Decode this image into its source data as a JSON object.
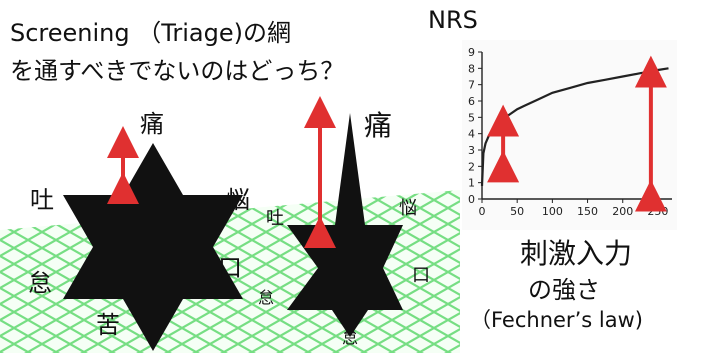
{
  "question": {
    "line1": "Screening （Triage)の網",
    "line2": "を通すべきでないのはどっち？"
  },
  "left_star": {
    "top": "痛",
    "upper_left": "吐",
    "upper_right": "悩",
    "lower_left": "怠",
    "lower_right": "口",
    "bottom": "苦"
  },
  "right_star": {
    "top": "痛",
    "upper_left": "吐",
    "upper_right": "悩",
    "lower_left": "怠",
    "lower_right": "口",
    "bottom": "怠"
  },
  "chart_title": "NRS",
  "stimulus_label": {
    "line1": "刺激入力",
    "line2": "の強さ",
    "line3": "（Fechner’s law)"
  },
  "colors": {
    "arrow": "#e03030",
    "net": "#7fe08a",
    "star": "#111111",
    "curve": "#222222"
  },
  "chart_data": {
    "type": "line",
    "title": "NRS",
    "xlabel": "",
    "ylabel": "",
    "x_ticks": [
      0,
      50,
      100,
      150,
      200,
      250
    ],
    "y_ticks": [
      0,
      1,
      2,
      3,
      4,
      5,
      6,
      7,
      8,
      9
    ],
    "xlim": [
      0,
      270
    ],
    "ylim": [
      0,
      9
    ],
    "grid": false,
    "series": [
      {
        "x": [
          0,
          2,
          5,
          10,
          15,
          20,
          30,
          40,
          50,
          60,
          80,
          100,
          125,
          150,
          175,
          200,
          225,
          250,
          265
        ],
        "y": [
          0.8,
          2.8,
          3.4,
          3.9,
          4.2,
          4.5,
          4.9,
          5.2,
          5.5,
          5.7,
          6.1,
          6.5,
          6.8,
          7.1,
          7.3,
          7.5,
          7.7,
          7.9,
          8.0
        ]
      }
    ],
    "annotations": [
      {
        "type": "double-arrow",
        "x": 30,
        "y_from": 2.0,
        "y_to": 4.8
      },
      {
        "type": "double-arrow",
        "x": 240,
        "y_from": 0.2,
        "y_to": 7.8
      }
    ]
  }
}
